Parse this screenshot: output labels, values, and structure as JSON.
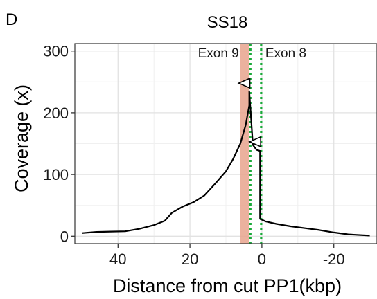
{
  "panel_label": "D",
  "chart_data": {
    "type": "line",
    "title": "SS18",
    "xlabel": "Distance from cut PP1(kbp)",
    "ylabel": "Coverage (x)",
    "x_reversed": true,
    "xlim": [
      52,
      -32
    ],
    "ylim": [
      -12,
      312
    ],
    "xticks": [
      40,
      20,
      0,
      -20
    ],
    "xtick_labels": [
      "40",
      "20",
      "0",
      "-20"
    ],
    "yticks": [
      0,
      100,
      200,
      300
    ],
    "ytick_labels": [
      "0",
      "100",
      "200",
      "300"
    ],
    "grid": true,
    "series": [
      {
        "color": "#000000",
        "x": [
          50,
          46,
          42,
          38,
          34,
          30,
          27,
          25,
          22,
          19,
          16,
          13,
          10,
          8,
          6,
          4.5,
          3.5,
          3.5,
          2.5,
          1.5,
          0.5,
          0.5,
          -1,
          -4,
          -8,
          -12,
          -16,
          -20,
          -24,
          -30
        ],
        "y": [
          5,
          7,
          7.5,
          8,
          12,
          18,
          25,
          38,
          48,
          55,
          66,
          85,
          105,
          125,
          150,
          180,
          212,
          235,
          148,
          140,
          138,
          28,
          24,
          20,
          16,
          13,
          10,
          6,
          3,
          1
        ]
      }
    ],
    "annotations": [
      {
        "type": "shaded-band",
        "color": "#e8a38d",
        "x_range": [
          6,
          3.5
        ],
        "label": "Exon 9"
      },
      {
        "type": "dotted-vline",
        "color": "#1aaa3a",
        "x": 3.2,
        "label": ""
      },
      {
        "type": "dotted-vline",
        "color": "#1aaa3a",
        "x": 0.2,
        "label": "Exon 8"
      },
      {
        "type": "open-triangle-marker",
        "x": 4.5,
        "y": 248
      },
      {
        "type": "open-triangle-marker",
        "x": 1.5,
        "y": 153
      }
    ]
  }
}
